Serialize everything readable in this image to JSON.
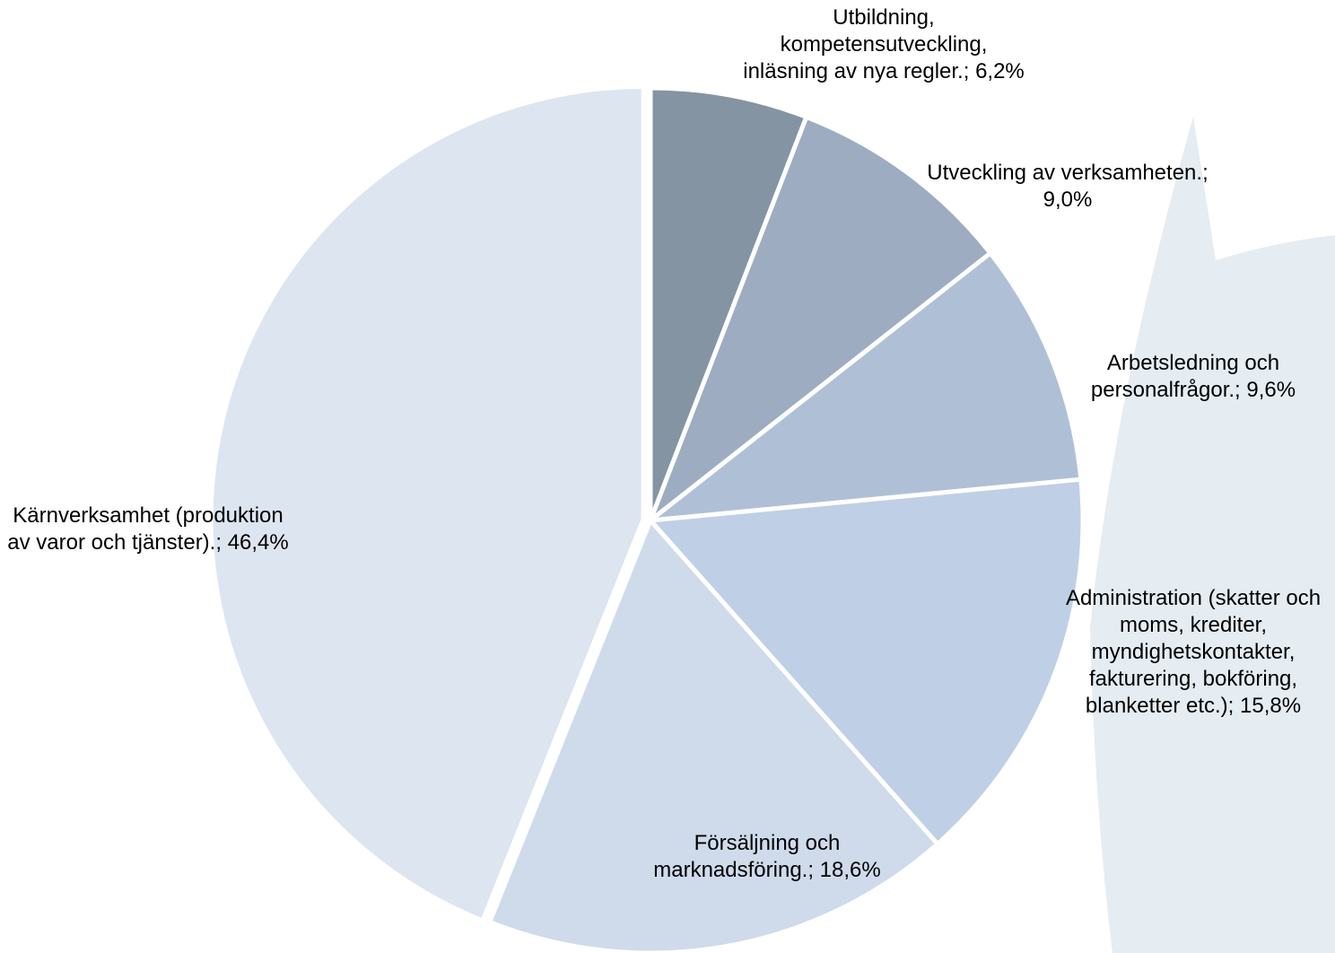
{
  "chart_data": {
    "type": "pie",
    "categories": [
      "Utbildning, kompetensutveckling, inläsning av nya regler.;",
      "Utveckling av verksamheten.;",
      "Arbetsledning och personalfrågor.;",
      "Administration (skatter och moms, krediter, myndighetskontakter, fakturering, bokföring, blanketter etc.);",
      "Försäljning och marknadsföring.;",
      "Kärnverksamhet (produktion av varor och tjänster).;"
    ],
    "values": [
      6.2,
      9.0,
      9.6,
      15.8,
      18.6,
      46.4
    ],
    "value_labels": [
      "6,2%",
      "9,0%",
      "9,6%",
      "15,8%",
      "18,6%",
      "46,4%"
    ],
    "colors": [
      "#8494a3",
      "#9dacc0",
      "#afc0d6",
      "#bfcfe5",
      "#cfdbeb",
      "#dde5f0"
    ]
  }
}
